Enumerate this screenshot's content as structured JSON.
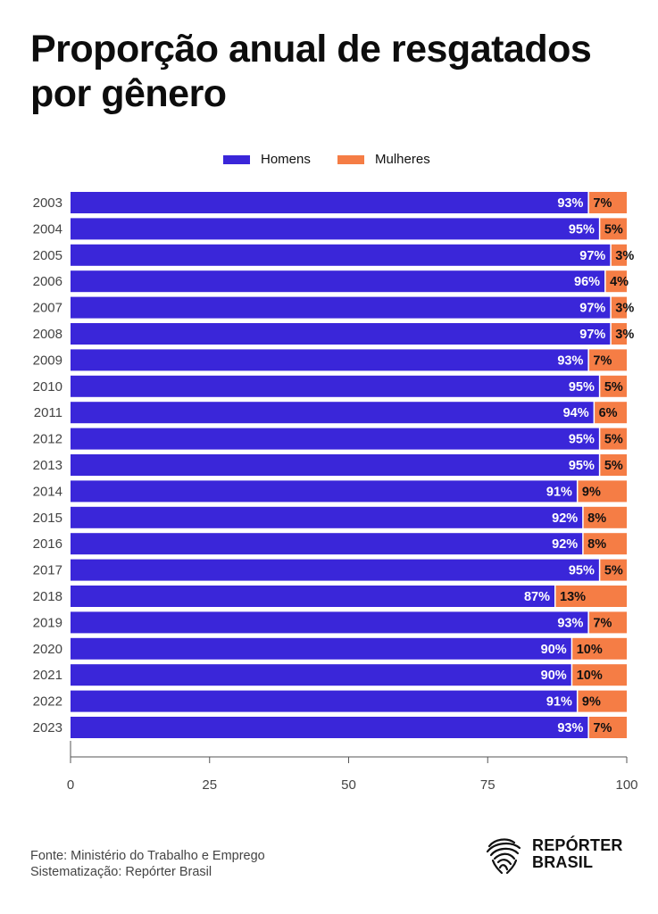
{
  "title": "Proporção anual de resgatados por gênero",
  "colors": {
    "homens": "#3a26d9",
    "mulheres": "#f57d45",
    "axis": "#555555",
    "text": "#111111"
  },
  "chart_data": {
    "type": "bar",
    "orientation": "horizontal",
    "stacked": true,
    "categories": [
      "2003",
      "2004",
      "2005",
      "2006",
      "2007",
      "2008",
      "2009",
      "2010",
      "2011",
      "2012",
      "2013",
      "2014",
      "2015",
      "2016",
      "2017",
      "2018",
      "2019",
      "2020",
      "2021",
      "2022",
      "2023"
    ],
    "series": [
      {
        "name": "Homens",
        "values": [
          93,
          95,
          97,
          96,
          97,
          97,
          93,
          95,
          94,
          95,
          95,
          91,
          92,
          92,
          95,
          87,
          93,
          90,
          90,
          91,
          93
        ]
      },
      {
        "name": "Mulheres",
        "values": [
          7,
          5,
          3,
          4,
          3,
          3,
          7,
          5,
          6,
          5,
          5,
          9,
          8,
          8,
          5,
          13,
          7,
          10,
          10,
          9,
          7
        ]
      }
    ],
    "data_label_suffix": "%",
    "xlim": [
      0,
      100
    ],
    "xticks": [
      0,
      25,
      50,
      75,
      100
    ],
    "legend": "top-center",
    "grid": false
  },
  "footer": {
    "source": "Fonte: Ministério do Trabalho e Emprego",
    "systematization": "Sistematização: Repórter Brasil"
  },
  "logo": {
    "line1": "REPÓRTER",
    "line2": "BRASIL",
    "icon": "brazil-map-fingerprint-icon"
  }
}
